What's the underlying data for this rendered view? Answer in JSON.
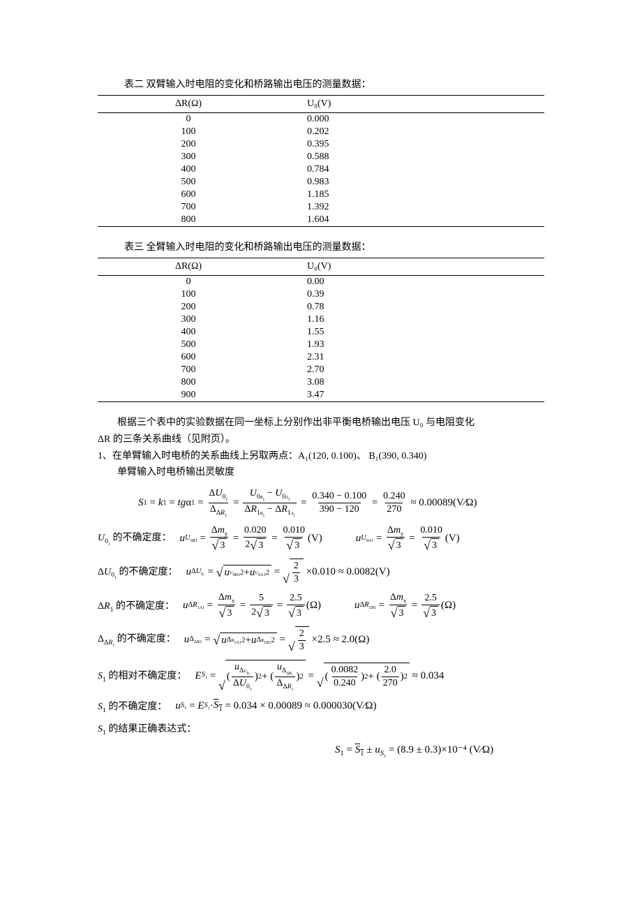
{
  "table2": {
    "caption": "表二 双臂输入时电阻的变化和桥路输出电压的测量数据：",
    "col1": "ΔR(Ω)",
    "col2": "U₀(V)",
    "rows": [
      [
        "0",
        "0.000"
      ],
      [
        "100",
        "0.202"
      ],
      [
        "200",
        "0.395"
      ],
      [
        "300",
        "0.588"
      ],
      [
        "400",
        "0.784"
      ],
      [
        "500",
        "0.983"
      ],
      [
        "600",
        "1.185"
      ],
      [
        "700",
        "1.392"
      ],
      [
        "800",
        "1.604"
      ]
    ]
  },
  "table3": {
    "caption": "表三 全臂输入时电阻的变化和桥路输出电压的测量数据：",
    "col1": "ΔR(Ω)",
    "col2": "U₀(V)",
    "rows": [
      [
        "0",
        "0.00"
      ],
      [
        "100",
        "0.39"
      ],
      [
        "200",
        "0.78"
      ],
      [
        "300",
        "1.16"
      ],
      [
        "400",
        "1.55"
      ],
      [
        "500",
        "1.93"
      ],
      [
        "600",
        "2.31"
      ],
      [
        "700",
        "2.70"
      ],
      [
        "800",
        "3.08"
      ],
      [
        "900",
        "3.47"
      ]
    ]
  },
  "para1a": "根据三个表中的实验数据在同一坐标上分别作出非平衡电桥输出电压 U₀ 与电阻变化",
  "para1b": "ΔR 的三条关系曲线（见附页）。",
  "item1": "1、在单臂输入时电桥的关系曲线上另取两点：A₁(120, 0.100)、 B₁(390, 0.340)",
  "item1b": "单臂输入时电桥输出灵敏度",
  "eq1": {
    "a": "0.340 − 0.100",
    "b": "390 − 120",
    "c": "0.240",
    "d": "270",
    "res": "≈ 0.00089(V⁄Ω)"
  },
  "labelU0": "的不确定度：",
  "eqU0a": {
    "lhs": "u",
    "mid1": "0.020",
    "mid2": "0.010",
    "res": "(V)"
  },
  "eqU0b": {
    "mid": "0.010",
    "res": "(V)"
  },
  "labelDU0": "的不确定度：",
  "eqDU0": {
    "val": "0.010",
    "res": "≈ 0.0082(V)"
  },
  "labelDR1": "的不确定度：",
  "eqDR1a": {
    "mid1": "5",
    "mid2": "2.5",
    "res": "(Ω)"
  },
  "eqDR1b": {
    "mid": "2.5",
    "res": "(Ω)"
  },
  "labelDDR": "的不确定度：",
  "eqDDR": {
    "val": "2.5",
    "res": "≈ 2.0(Ω)"
  },
  "labelES1": "的相对不确定度：",
  "eqES1": {
    "a": "0.0082",
    "b": "0.240",
    "c": "2.0",
    "d": "270",
    "res": "≈ 0.034"
  },
  "labelUS1": "的不确定度：",
  "eqUS1": "= 0.034 × 0.00089 ≈ 0.000030(V⁄Ω)",
  "labelFinal": "的结果正确表达式：",
  "final": "= (8.9 ± 0.3)×10⁻⁴ (V⁄Ω)"
}
